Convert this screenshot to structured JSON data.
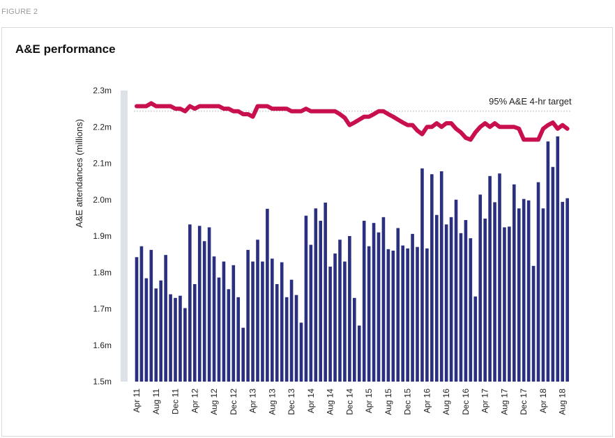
{
  "figure_label": "FIGURE 2",
  "colors": {
    "bar": "#2b2f7f",
    "line": "#c8104e",
    "axis_band": "#dde1e8",
    "dotted": "#bfbfbf"
  },
  "chart_data": {
    "type": "bar",
    "title": "A&E performance",
    "ylabel": "A&E attendances (millions)",
    "ylim": [
      1.5,
      2.3
    ],
    "y_ticks": [
      "1.5m",
      "1.6m",
      "1.7m",
      "1.8m",
      "1.9m",
      "2.0m",
      "2.1m",
      "2.2m",
      "2.3m"
    ],
    "y_tick_values": [
      1.5,
      1.6,
      1.7,
      1.8,
      1.9,
      2.0,
      2.1,
      2.2,
      2.3
    ],
    "x_tick_labels": [
      "Apr 11",
      "Aug 11",
      "Dec 11",
      "Apr 12",
      "Aug 12",
      "Dec 12",
      "Apr 13",
      "Aug 13",
      "Dec 13",
      "Apr 14",
      "Aug 14",
      "Dec 14",
      "Apr 15",
      "Aug 15",
      "Dec 15",
      "Apr 16",
      "Aug 16",
      "Dec 16",
      "Apr 17",
      "Aug 17",
      "Dec 17",
      "Apr 18",
      "Aug 18"
    ],
    "x_tick_every": 4,
    "bar_values": [
      1.842,
      1.872,
      1.784,
      1.862,
      1.756,
      1.778,
      1.848,
      1.74,
      1.73,
      1.736,
      1.702,
      1.932,
      1.768,
      1.928,
      1.886,
      1.924,
      1.844,
      1.786,
      1.83,
      1.754,
      1.82,
      1.732,
      1.648,
      1.862,
      1.83,
      1.89,
      1.83,
      1.975,
      1.838,
      1.768,
      1.828,
      1.732,
      1.78,
      1.738,
      1.662,
      1.956,
      1.876,
      1.976,
      1.942,
      1.992,
      1.816,
      1.852,
      1.89,
      1.83,
      1.9,
      1.73,
      1.654,
      1.942,
      1.872,
      1.936,
      1.91,
      1.952,
      1.864,
      1.86,
      1.922,
      1.874,
      1.866,
      1.906,
      1.87,
      2.086,
      1.866,
      2.07,
      1.958,
      2.078,
      1.932,
      1.952,
      2.0,
      1.908,
      1.944,
      1.894,
      1.734,
      2.014,
      1.948,
      2.065,
      1.993,
      2.072,
      1.924,
      1.926,
      2.042,
      1.976,
      2.002,
      1.998,
      1.818,
      2.048,
      1.976,
      2.16,
      2.09,
      2.174,
      1.994,
      2.004
    ],
    "line_series": {
      "name": "",
      "values": [
        2.257,
        2.257,
        2.257,
        2.265,
        2.257,
        2.257,
        2.257,
        2.257,
        2.25,
        2.25,
        2.243,
        2.257,
        2.25,
        2.257,
        2.257,
        2.257,
        2.257,
        2.257,
        2.25,
        2.25,
        2.243,
        2.243,
        2.235,
        2.235,
        2.228,
        2.257,
        2.257,
        2.257,
        2.25,
        2.25,
        2.25,
        2.25,
        2.243,
        2.243,
        2.243,
        2.25,
        2.243,
        2.243,
        2.243,
        2.243,
        2.243,
        2.243,
        2.235,
        2.225,
        2.205,
        2.212,
        2.22,
        2.228,
        2.228,
        2.235,
        2.243,
        2.243,
        2.235,
        2.228,
        2.22,
        2.212,
        2.205,
        2.205,
        2.19,
        2.18,
        2.2,
        2.2,
        2.21,
        2.2,
        2.21,
        2.21,
        2.195,
        2.185,
        2.17,
        2.165,
        2.185,
        2.2,
        2.21,
        2.2,
        2.21,
        2.2,
        2.2,
        2.2,
        2.2,
        2.195,
        2.165,
        2.165,
        2.165,
        2.165,
        2.195,
        2.205,
        2.212,
        2.195,
        2.205,
        2.195
      ]
    },
    "target": {
      "label": "95% A&E 4-hr target",
      "value": 2.243
    }
  }
}
